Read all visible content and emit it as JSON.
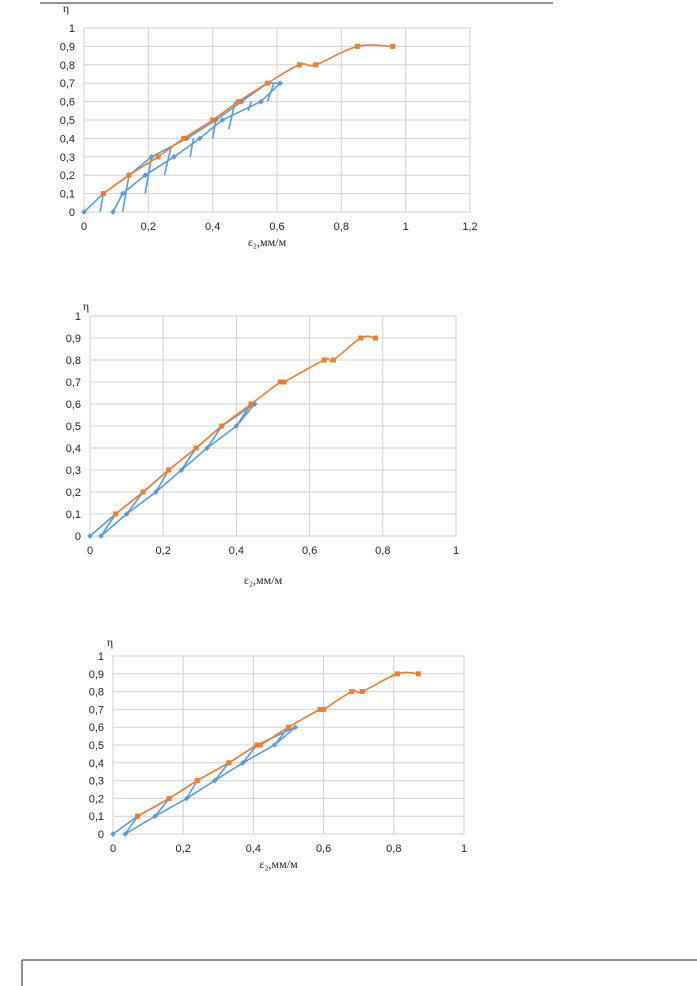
{
  "colors": {
    "loading": "#ed7d31",
    "cycles": "#5b9bd5",
    "grid": "#d0d0d0",
    "text": "#222222"
  },
  "chart_data": [
    {
      "type": "line",
      "ylabel": "η",
      "xlabel": "ε₂,мм/м",
      "xlim": [
        0,
        1.2
      ],
      "ylim": [
        0,
        1
      ],
      "xticks": [
        "0",
        "0,2",
        "0,4",
        "0,6",
        "0,8",
        "1",
        "1,2"
      ],
      "yticks": [
        "0",
        "0,1",
        "0,2",
        "0,3",
        "0,4",
        "0,5",
        "0,6",
        "0,7",
        "0,8",
        "0,9",
        "1"
      ],
      "grid": true,
      "series": [
        {
          "values": [
            [
              0.06,
              0.1
            ],
            [
              0.14,
              0.2
            ],
            [
              0.23,
              0.3
            ],
            [
              0.31,
              0.4
            ],
            [
              0.4,
              0.5
            ],
            [
              0.48,
              0.6
            ],
            [
              0.57,
              0.7
            ],
            [
              0.67,
              0.8
            ],
            [
              0.72,
              0.8
            ],
            [
              0.85,
              0.9
            ],
            [
              0.96,
              0.9
            ]
          ]
        },
        {
          "values": [
            [
              0,
              0
            ],
            [
              0.06,
              0.1
            ],
            [
              0.14,
              0.2
            ],
            [
              0.21,
              0.3
            ],
            [
              0.32,
              0.4
            ],
            [
              0.41,
              0.5
            ],
            [
              0.49,
              0.6
            ],
            [
              0.57,
              0.7
            ],
            [
              0.61,
              0.7
            ],
            [
              0.55,
              0.6
            ],
            [
              0.43,
              0.5
            ],
            [
              0.36,
              0.4
            ],
            [
              0.28,
              0.3
            ],
            [
              0.19,
              0.2
            ],
            [
              0.12,
              0.1
            ],
            [
              0.09,
              0
            ]
          ]
        },
        {
          "values": [
            [
              0.05,
              0
            ],
            [
              0.06,
              0.1
            ]
          ]
        },
        {
          "values": [
            [
              0.12,
              0
            ],
            [
              0.14,
              0.2
            ]
          ]
        },
        {
          "values": [
            [
              0.19,
              0.1
            ],
            [
              0.21,
              0.3
            ]
          ]
        },
        {
          "values": [
            [
              0.25,
              0.2
            ],
            [
              0.27,
              0.35
            ]
          ]
        },
        {
          "values": [
            [
              0.33,
              0.3
            ],
            [
              0.34,
              0.4
            ]
          ]
        },
        {
          "values": [
            [
              0.4,
              0.4
            ],
            [
              0.41,
              0.5
            ]
          ]
        },
        {
          "values": [
            [
              0.45,
              0.45
            ],
            [
              0.47,
              0.6
            ]
          ]
        },
        {
          "values": [
            [
              0.51,
              0.55
            ],
            [
              0.52,
              0.6
            ]
          ]
        },
        {
          "values": [
            [
              0.57,
              0.6
            ],
            [
              0.59,
              0.7
            ]
          ]
        }
      ]
    },
    {
      "type": "line",
      "ylabel": "η",
      "xlabel": "ε₂,мм/м",
      "xlim": [
        0,
        1
      ],
      "ylim": [
        0,
        1
      ],
      "xticks": [
        "0",
        "0,2",
        "0,4",
        "0,6",
        "0,8",
        "1"
      ],
      "yticks": [
        "0",
        "0,1",
        "0,2",
        "0,3",
        "0,4",
        "0,5",
        "0,6",
        "0,7",
        "0,8",
        "0,9",
        "1"
      ],
      "grid": true,
      "series": [
        {
          "values": [
            [
              0.07,
              0.1
            ],
            [
              0.145,
              0.2
            ],
            [
              0.215,
              0.3
            ],
            [
              0.29,
              0.4
            ],
            [
              0.36,
              0.5
            ],
            [
              0.44,
              0.6
            ],
            [
              0.52,
              0.7
            ],
            [
              0.53,
              0.7
            ],
            [
              0.64,
              0.8
            ],
            [
              0.665,
              0.8
            ],
            [
              0.74,
              0.9
            ],
            [
              0.78,
              0.9
            ]
          ]
        },
        {
          "values": [
            [
              0,
              0
            ],
            [
              0.07,
              0.1
            ],
            [
              0.145,
              0.2
            ],
            [
              0.215,
              0.3
            ],
            [
              0.29,
              0.4
            ],
            [
              0.36,
              0.5
            ],
            [
              0.45,
              0.6
            ],
            [
              0.4,
              0.5
            ],
            [
              0.32,
              0.4
            ],
            [
              0.25,
              0.3
            ],
            [
              0.18,
              0.2
            ],
            [
              0.1,
              0.1
            ],
            [
              0.03,
              0
            ]
          ]
        },
        {
          "values": [
            [
              0.03,
              0
            ],
            [
              0.07,
              0.1
            ]
          ]
        },
        {
          "values": [
            [
              0.1,
              0.1
            ],
            [
              0.145,
              0.2
            ]
          ]
        },
        {
          "values": [
            [
              0.18,
              0.2
            ],
            [
              0.215,
              0.3
            ]
          ]
        },
        {
          "values": [
            [
              0.25,
              0.3
            ],
            [
              0.29,
              0.4
            ]
          ]
        },
        {
          "values": [
            [
              0.32,
              0.4
            ],
            [
              0.36,
              0.5
            ]
          ]
        },
        {
          "values": [
            [
              0.4,
              0.5
            ],
            [
              0.44,
              0.6
            ]
          ]
        }
      ]
    },
    {
      "type": "line",
      "ylabel": "η",
      "xlabel": "ε₂,мм/м",
      "xlim": [
        0,
        1
      ],
      "ylim": [
        0,
        1
      ],
      "xticks": [
        "0",
        "0,2",
        "0,4",
        "0,6",
        "0,8",
        "1"
      ],
      "yticks": [
        "0",
        "0,1",
        "0,2",
        "0,3",
        "0,4",
        "0,5",
        "0,6",
        "0,7",
        "0,8",
        "0,9",
        "1"
      ],
      "grid": true,
      "series": [
        {
          "values": [
            [
              0.07,
              0.1
            ],
            [
              0.16,
              0.2
            ],
            [
              0.24,
              0.3
            ],
            [
              0.33,
              0.4
            ],
            [
              0.41,
              0.5
            ],
            [
              0.42,
              0.5
            ],
            [
              0.5,
              0.6
            ],
            [
              0.59,
              0.7
            ],
            [
              0.6,
              0.7
            ],
            [
              0.68,
              0.8
            ],
            [
              0.71,
              0.8
            ],
            [
              0.81,
              0.9
            ],
            [
              0.87,
              0.9
            ]
          ]
        },
        {
          "values": [
            [
              0,
              0
            ],
            [
              0.07,
              0.1
            ],
            [
              0.16,
              0.2
            ],
            [
              0.24,
              0.3
            ],
            [
              0.33,
              0.4
            ],
            [
              0.41,
              0.5
            ],
            [
              0.52,
              0.6
            ],
            [
              0.46,
              0.5
            ],
            [
              0.37,
              0.4
            ],
            [
              0.29,
              0.3
            ],
            [
              0.21,
              0.2
            ],
            [
              0.12,
              0.1
            ],
            [
              0.035,
              0
            ]
          ]
        },
        {
          "values": [
            [
              0.035,
              0
            ],
            [
              0.07,
              0.1
            ]
          ]
        },
        {
          "values": [
            [
              0.12,
              0.1
            ],
            [
              0.16,
              0.2
            ]
          ]
        },
        {
          "values": [
            [
              0.21,
              0.2
            ],
            [
              0.24,
              0.3
            ]
          ]
        },
        {
          "values": [
            [
              0.29,
              0.3
            ],
            [
              0.33,
              0.4
            ]
          ]
        },
        {
          "values": [
            [
              0.37,
              0.4
            ],
            [
              0.41,
              0.5
            ]
          ]
        },
        {
          "values": [
            [
              0.46,
              0.5
            ],
            [
              0.5,
              0.6
            ]
          ]
        }
      ]
    }
  ]
}
